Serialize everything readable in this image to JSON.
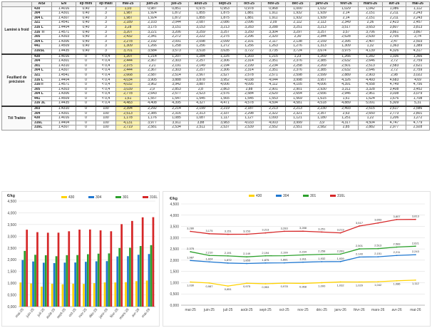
{
  "table": {
    "headers": [
      "",
      "AISI",
      "EN",
      "ép mini",
      "ép maxi",
      "mai-25",
      "juin-25",
      "juil-25",
      "août-25",
      "sept-25",
      "oct-25",
      "nov-25",
      "déc-25",
      "janv-26",
      "févr-26",
      "mars-26",
      "avr-26",
      "mai-26"
    ],
    "groups": [
      {
        "name": "Laminé à froid",
        "rows": [
          {
            "aisi": "430",
            "en": "1.4016",
            "ep_min": "0,40",
            "ep_max": "3",
            "values": [
              "1,03",
              "0,987",
              "0,851",
              "0,975",
              "0,953",
              "0,978",
              "0,968",
              "1,000",
              "1,032",
              "1,029",
              "1,042",
              "1,086",
              "1,112"
            ]
          },
          {
            "aisi": "304",
            "en": "1.4301",
            "ep_min": "0,40",
            "ep_max": "3",
            "values": [
              "1,987",
              "1,924",
              "1,872",
              "1,855",
              "1,875",
              "1,881",
              "1,911",
              "1,932",
              "1,939",
              "2,14",
              "2,151",
              "2,211",
              "2,243"
            ]
          },
          {
            "aisi": "304 L",
            "en": "1.4307",
            "ep_min": "0,40",
            "ep_max": "3",
            "values": [
              "1,987",
              "1,924",
              "1,872",
              "1,855",
              "1,875",
              "1,881",
              "1,911",
              "1,932",
              "1,939",
              "2,14",
              "2,151",
              "2,211",
              "2,243"
            ]
          },
          {
            "aisi": "321",
            "en": "1.4541",
            "ep_min": "0,40",
            "ep_max": "3",
            "values": [
              "2,189",
              "2,103",
              "2,044",
              "2,087",
              "2,086",
              "2,096",
              "2,09",
              "2,112",
              "2,113",
              "2,349",
              "2,36",
              "2,423",
              "2,457"
            ]
          },
          {
            "aisi": "316 L",
            "en": "1.4404",
            "ep_min": "0,40",
            "ep_max": "3",
            "values": [
              "3,28",
              "3,175",
              "3,151",
              "3,153",
              "3,213",
              "3,283",
              "3,288",
              "3,251",
              "3,213",
              "3,517",
              "3,653",
              "3,807",
              "3,813"
            ]
          },
          {
            "aisi": "316 Ti",
            "en": "1.4571",
            "ep_min": "0,40",
            "ep_max": "3",
            "values": [
              "3,207",
              "3,221",
              "3,206",
              "3,259",
              "3,257",
              "3,250",
              "3,304",
              "3,297",
              "3,257",
              "3,57",
              "3,706",
              "3,861",
              "3,867"
            ]
          },
          {
            "aisi": "305",
            "en": "1.4303",
            "ep_min": "0,40",
            "ep_max": "3",
            "values": [
              "2,432",
              "2,341",
              "2,272",
              "2,222",
              "2,275",
              "2,296",
              "2,320",
              "2,30",
              "2,344",
              "2,628",
              "2,630",
              "2,705",
              "2,74"
            ]
          },
          {
            "aisi": "304 L",
            "en": "1.4306",
            "ep_min": "0,40",
            "ep_max": "3",
            "values": [
              "2,278",
              "2,192",
              "2,091",
              "2,098",
              "2,099",
              "2,101",
              "2,117",
              "2,138",
              "2,159",
              "2,395",
              "2,407",
              "2,47",
              "2,503"
            ]
          },
          {
            "aisi": "441",
            "en": "1.4509",
            "ep_min": "0,40",
            "ep_max": "3",
            "values": [
              "1,309",
              "1,266",
              "1,258",
              "1,256",
              "1,272",
              "1,256",
              "1,263",
              "1,276",
              "1,313",
              "1,309",
              "1,32",
              "1,363",
              "1,389"
            ]
          },
          {
            "aisi": "316SL",
            "en": "1.4435",
            "ep_min": "0,40",
            "ep_max": "3",
            "values": [
              "3,701",
              "3,584",
              "3,573",
              "3,518",
              "3,635",
              "3,722",
              "3,735",
              "3,724",
              "3,674",
              "3,975",
              "4,139",
              "4,326",
              "4,317"
            ]
          }
        ]
      },
      {
        "name": "Feuillard de précision",
        "rows": [
          {
            "aisi": "430",
            "en": "1.4016",
            "ep_min": "0",
            "ep_max": "< 0,4",
            "values": [
              "1,207",
              "1,214",
              "1,207",
              "1,284",
              "1,225",
              "1,203",
              "1,215",
              "1,23",
              "1,269",
              "1,266",
              "1,282",
              "1,336",
              "1,366"
            ]
          },
          {
            "aisi": "304",
            "en": "1.4301",
            "ep_min": "0",
            "ep_max": "< 0,4",
            "values": [
              "2,444",
              "2,367",
              "2,303",
              "2,257",
              "2,306",
              "2,314",
              "2,351",
              "2,376",
              "2,385",
              "2,632",
              "2,646",
              "2,72",
              "2,759"
            ]
          },
          {
            "aisi": "301",
            "en": "1.4310",
            "ep_min": "0",
            "ep_max": "< 0,4",
            "values": [
              "2,375",
              "2,21",
              "2,191",
              "2,149",
              "2,194",
              "2,199",
              "2,234",
              "2,258",
              "2,269",
              "2,501",
              "2,513",
              "2,583",
              "2,621"
            ]
          },
          {
            "aisi": "304 L",
            "en": "1.4307",
            "ep_min": "0",
            "ep_max": "< 0,4",
            "values": [
              "2,444",
              "2,367",
              "2,303",
              "2,257",
              "2,306",
              "2,314",
              "2,351",
              "2,376",
              "2,385",
              "2,632",
              "2,646",
              "2,72",
              "2,759"
            ]
          },
          {
            "aisi": "321",
            "en": "1.4541",
            "ep_min": "0",
            "ep_max": "< 0,4",
            "values": [
              "2,668",
              "2,587",
              "2,514",
              "2,567",
              "2,527",
              "2,578",
              "2,571",
              "2,598",
              "2,599",
              "2,889",
              "2,903",
              "2,98",
              "3,022"
            ]
          },
          {
            "aisi": "316 L",
            "en": "1.4404",
            "ep_min": "0",
            "ep_max": "< 0,4",
            "values": [
              "4,034",
              "3,905",
              "3,888",
              "3,878",
              "3,952",
              "4,038",
              "4,044",
              "3,998",
              "3,957",
              "4,326",
              "4,493",
              "4,683",
              "4,69"
            ]
          },
          {
            "aisi": "316Ti",
            "en": "1.4571",
            "ep_min": "0",
            "ep_max": "< 0,4",
            "values": [
              "4,032",
              "3,962",
              "3,942",
              "3,887",
              "4,006",
              "4,095",
              "4,112",
              "4,105",
              "4,006",
              "4,391",
              "4,558",
              "4,749",
              "4,756"
            ]
          },
          {
            "aisi": "305",
            "en": "1.4303",
            "ep_min": "0",
            "ep_max": "< 0,4",
            "values": [
              "3,039",
              "2,9",
              "2,853",
              "2,8",
              "2,863",
              "2,88",
              "2,901",
              "2,901",
              "2,930",
              "3,311",
              "3,328",
              "3,408",
              "3,452"
            ]
          },
          {
            "aisi": "304 L",
            "en": "1.4306",
            "ep_min": "0",
            "ep_max": "< 0,4",
            "values": [
              "2,778",
              "2,643",
              "2,577",
              "2,523",
              "2,576",
              "2,584",
              "2,620",
              "2,654",
              "2,656",
              "2,946",
              "2,961",
              "3,038",
              "3,079"
            ]
          },
          {
            "aisi": "441",
            "en": "1.4509",
            "ep_min": "0",
            "ep_max": "< 0,4",
            "values": [
              "1,61",
              "1,557",
              "1,547",
              "1,545",
              "1,565",
              "1,545",
              "1,553",
              "1,569",
              "1,615",
              "1,61",
              "1,624",
              "1,676",
              "1,708"
            ]
          },
          {
            "aisi": "316 3L",
            "en": "1.4435",
            "ep_min": "0",
            "ep_max": "< 0,4",
            "values": [
              "4,483",
              "4,408",
              "4,395",
              "4,327",
              "4,471",
              "4,578",
              "4,594",
              "4,581",
              "4,518",
              "4,889",
              "5,091",
              "5,309",
              "5,31"
            ]
          }
        ]
      },
      {
        "name": "Tôl Traitée",
        "rows": [
          {
            "aisi": "303",
            "en": "1.4310",
            "ep_min": "0",
            "ep_max": "100",
            "values": [
              "2,394",
              "2,292",
              "2,214",
              "2,199",
              "2,219",
              "2,187",
              "2,213",
              "2,213",
              "2,230",
              "2,493",
              "2,515",
              "2,617",
              "2,586"
            ]
          },
          {
            "aisi": "304",
            "en": "1.4301",
            "ep_min": "0",
            "ep_max": "100",
            "values": [
              "2,513",
              "2,385",
              "2,316",
              "2,313",
              "2,337",
              "2,298",
              "2,322",
              "2,321",
              "2,357",
              "2,63",
              "2,650",
              "2,773",
              "2,801"
            ]
          },
          {
            "aisi": "430",
            "en": "1.4016",
            "ep_min": "0",
            "ep_max": "100",
            "values": [
              "1,178",
              "1,176",
              "1,085",
              "1,087",
              "1,117",
              "1,127",
              "1,093",
              "1,121",
              "1,180",
              "1,251",
              "1,22",
              "1,206",
              "1,272"
            ]
          },
          {
            "aisi": "316L",
            "en": "1.4404",
            "ep_min": "0",
            "ep_max": "100",
            "values": [
              "4,131",
              "3,977",
              "3,911",
              "3,88",
              "3,983",
              "4,033",
              "4,003",
              "3,999",
              "3,9",
              "4,317",
              "4,504",
              "4,747",
              "4,779"
            ]
          },
          {
            "aisi": "316L",
            "en": "1.4307",
            "ep_min": "0",
            "ep_max": "100",
            "values": [
              "2,719",
              "2,581",
              "2,534",
              "2,511",
              "2,537",
              "2,539",
              "2,552",
              "2,551",
              "2,582",
              "2,85",
              "2,882",
              "2,977",
              "2,928"
            ]
          }
        ]
      }
    ]
  },
  "chart_data": [
    {
      "type": "bar",
      "title": "",
      "ylabel": "€/kg",
      "categories": [
        "mai-25",
        "juin-25",
        "juil-25",
        "août-25",
        "sept-25",
        "oct-25",
        "nov-25",
        "déc-25",
        "janv-26",
        "févr-26",
        "mars-26",
        "avr-26",
        "mai-26"
      ],
      "series": [
        {
          "name": "430",
          "color": "#ffd200",
          "values": [
            1.03,
            0.987,
            0.851,
            0.975,
            0.953,
            0.978,
            0.968,
            1.0,
            1.032,
            1.029,
            1.042,
            1.086,
            1.112
          ]
        },
        {
          "name": "304",
          "color": "#1f77d0",
          "values": [
            1.987,
            1.924,
            1.872,
            1.855,
            1.875,
            1.881,
            1.911,
            1.932,
            1.939,
            2.14,
            2.151,
            2.211,
            2.243
          ]
        },
        {
          "name": "301",
          "color": "#2ca02c",
          "values": [
            2.375,
            2.21,
            2.191,
            2.149,
            2.194,
            2.199,
            2.234,
            2.258,
            2.269,
            2.501,
            2.513,
            2.583,
            2.621
          ]
        },
        {
          "name": "316L",
          "color": "#d62728",
          "values": [
            3.28,
            3.175,
            3.151,
            3.153,
            3.213,
            3.283,
            3.288,
            3.251,
            3.213,
            3.517,
            3.653,
            3.807,
            3.813
          ]
        }
      ],
      "ylim": [
        0,
        4.5
      ],
      "yticks": [
        "0,000",
        "0,500",
        "1,000",
        "1,500",
        "2,000",
        "2,500",
        "3,000",
        "3,500",
        "4,000",
        "4,500"
      ],
      "legend": "top",
      "grid": true
    },
    {
      "type": "line",
      "title": "",
      "ylabel": "€/kg",
      "categories": [
        "mai-25",
        "juin-25",
        "juil-25",
        "août-25",
        "sept-25",
        "oct-25",
        "nov-25",
        "déc-25",
        "janv-26",
        "févr-26",
        "mars-26",
        "avr-26",
        "mai-26"
      ],
      "series": [
        {
          "name": "430",
          "color": "#ffd200",
          "values": [
            1.03,
            0.987,
            0.851,
            0.975,
            0.953,
            0.978,
            0.968,
            1.0,
            1.032,
            1.029,
            1.042,
            1.086,
            1.112
          ]
        },
        {
          "name": "304",
          "color": "#1f77d0",
          "values": [
            1.987,
            1.924,
            1.872,
            1.855,
            1.875,
            1.881,
            1.911,
            1.932,
            1.939,
            2.14,
            2.151,
            2.211,
            2.243
          ]
        },
        {
          "name": "301",
          "color": "#2ca02c",
          "values": [
            2.375,
            2.21,
            2.191,
            2.149,
            2.194,
            2.199,
            2.234,
            2.258,
            2.269,
            2.501,
            2.513,
            2.583,
            2.621
          ]
        },
        {
          "name": "316L",
          "color": "#d62728",
          "values": [
            3.28,
            3.175,
            3.151,
            3.153,
            3.213,
            3.283,
            3.288,
            3.251,
            3.213,
            3.517,
            3.653,
            3.807,
            3.813
          ]
        }
      ],
      "ylim": [
        0,
        4.5
      ],
      "yticks": [
        "0,000",
        "0,500",
        "1,000",
        "1,500",
        "2,000",
        "2,500",
        "3,000",
        "3,500",
        "4,000",
        "4,500"
      ],
      "legend": "top",
      "grid": true
    }
  ]
}
